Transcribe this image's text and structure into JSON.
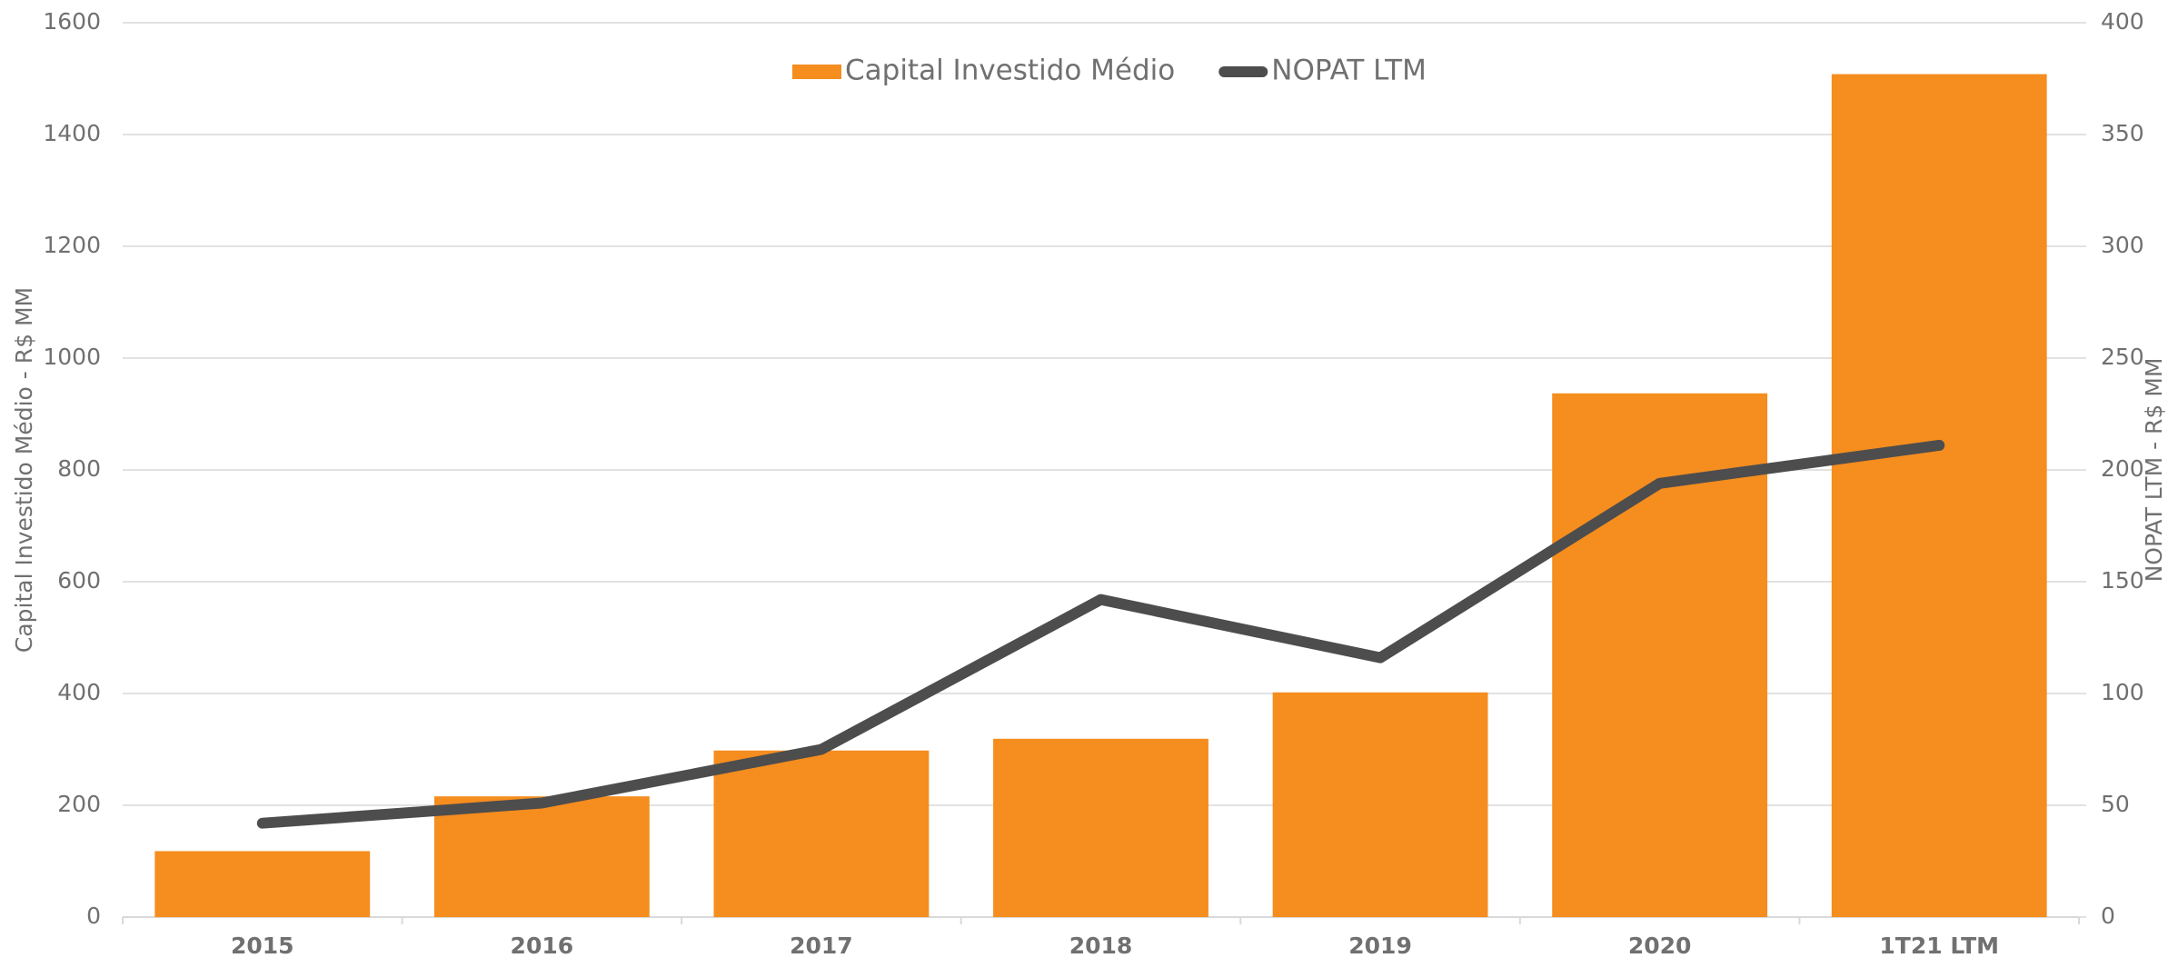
{
  "chart_data": {
    "type": "bar_line",
    "categories": [
      "2015",
      "2016",
      "2017",
      "2018",
      "2019",
      "2020",
      "1T21 LTM"
    ],
    "series": [
      {
        "name": "Capital Investido Médio",
        "type": "bar",
        "color": "#f58d1f",
        "values": [
          118,
          216,
          298,
          319,
          402,
          937,
          1508
        ]
      },
      {
        "name": "NOPAT LTM",
        "type": "line",
        "axis": "y2",
        "color": "#4d4d4d",
        "values": [
          42,
          51,
          75,
          142,
          116,
          194,
          211
        ]
      }
    ],
    "ylabel": "Capital Investido Médio - R$ MM",
    "y2label": "NOPAT LTM - R$ MM",
    "ylim": [
      0,
      1600
    ],
    "yticks": [
      0,
      200,
      400,
      600,
      800,
      1000,
      1200,
      1400,
      1600
    ],
    "y2lim": [
      0,
      400
    ],
    "y2ticks": [
      0,
      50,
      100,
      150,
      200,
      250,
      300,
      350,
      400
    ],
    "grid": true,
    "legend": "top"
  }
}
